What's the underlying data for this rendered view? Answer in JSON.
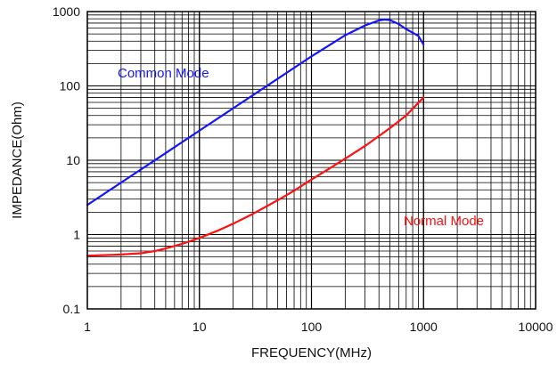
{
  "chart_data": {
    "type": "line",
    "title": "",
    "xlabel": "FREQUENCY(MHz)",
    "ylabel": "IMPEDANCE(Ohm)",
    "x_scale": "log",
    "y_scale": "log",
    "xlim": [
      1,
      10000
    ],
    "ylim": [
      0.1,
      1000
    ],
    "grid": true,
    "x_ticks": [
      "1",
      "10",
      "100",
      "1000",
      "10000"
    ],
    "y_ticks": [
      "0.1",
      "1",
      "10",
      "100",
      "1000"
    ],
    "series": [
      {
        "name": "Common Mode",
        "color": "#1414ff",
        "x": [
          1,
          2,
          5,
          10,
          20,
          50,
          100,
          200,
          300,
          400,
          450,
          500,
          600,
          700,
          800,
          900,
          1000
        ],
        "y": [
          2.5,
          5,
          12.5,
          25,
          50,
          125,
          250,
          480,
          650,
          760,
          780,
          770,
          680,
          580,
          520,
          470,
          360
        ]
      },
      {
        "name": "Normal Mode",
        "color": "#ff1010",
        "x": [
          1,
          1.5,
          2,
          3,
          4,
          5,
          7,
          10,
          15,
          20,
          30,
          50,
          70,
          100,
          150,
          200,
          300,
          500,
          700,
          1000
        ],
        "y": [
          0.52,
          0.53,
          0.54,
          0.56,
          0.6,
          0.65,
          0.75,
          0.9,
          1.15,
          1.4,
          1.9,
          2.9,
          3.9,
          5.5,
          8,
          10.5,
          15.5,
          27,
          40,
          70
        ]
      }
    ]
  }
}
